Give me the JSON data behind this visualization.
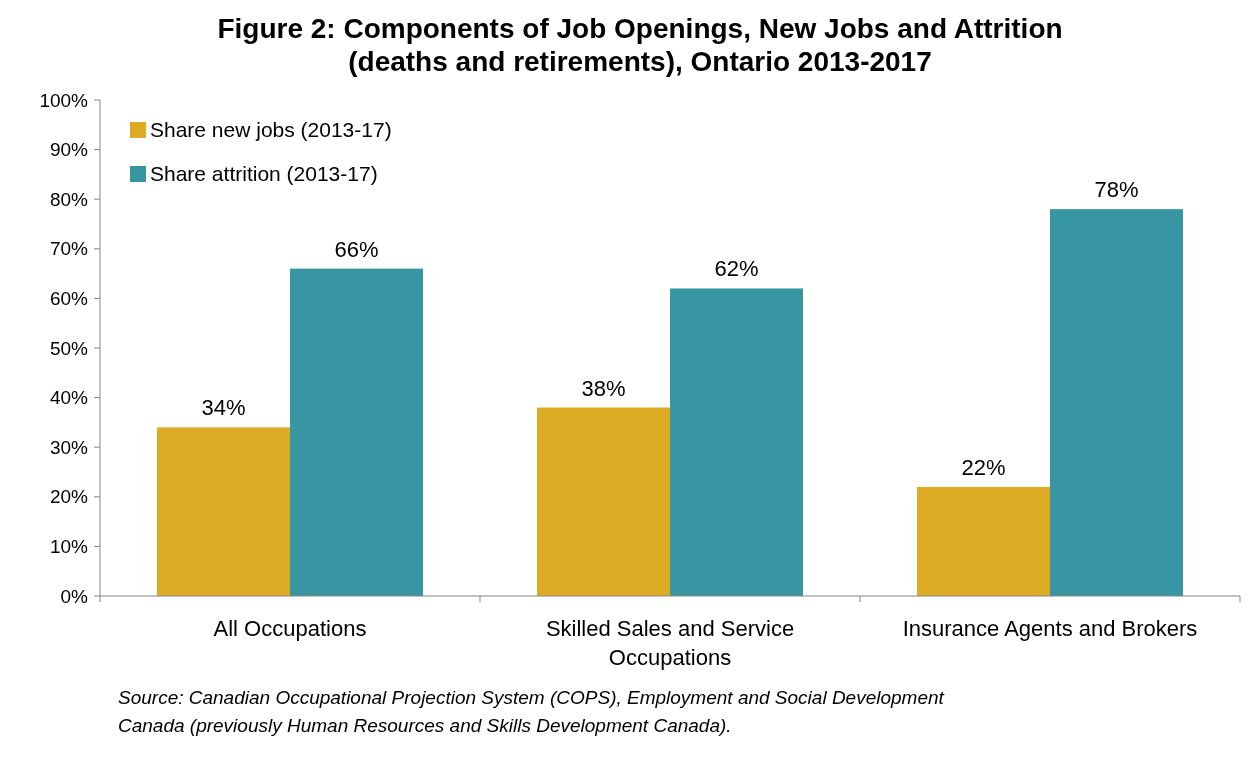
{
  "chart_data": {
    "type": "bar",
    "title": "Figure 2: Components of Job Openings, New Jobs and Attrition (deaths and retirements), Ontario 2013-2017",
    "categories": [
      "All Occupations",
      "Skilled Sales and Service Occupations",
      "Insurance Agents and Brokers"
    ],
    "series": [
      {
        "name": "Share new jobs (2013-17)",
        "color": "#ddab24",
        "values": [
          34,
          38,
          22
        ],
        "value_labels": [
          "34%",
          "38%",
          "22%"
        ]
      },
      {
        "name": "Share attrition (2013-17)",
        "color": "#3895a2",
        "values": [
          66,
          62,
          78
        ],
        "value_labels": [
          "66%",
          "62%",
          "78%"
        ]
      }
    ],
    "ylim": [
      0,
      100
    ],
    "yticks": [
      {
        "value": 0,
        "label": "0%"
      },
      {
        "value": 10,
        "label": "10%"
      },
      {
        "value": 20,
        "label": "20%"
      },
      {
        "value": 30,
        "label": "30%"
      },
      {
        "value": 40,
        "label": "40%"
      },
      {
        "value": 50,
        "label": "50%"
      },
      {
        "value": 60,
        "label": "60%"
      },
      {
        "value": 70,
        "label": "70%"
      },
      {
        "value": 80,
        "label": "80%"
      },
      {
        "value": 90,
        "label": "90%"
      },
      {
        "value": 100,
        "label": "100%"
      }
    ],
    "legend": "top left",
    "grid": false,
    "annotations": [
      "Source: Canadian Occupational Projection System (COPS), Employment and Social Development Canada (previously Human Resources and Skills Development Canada)."
    ]
  }
}
